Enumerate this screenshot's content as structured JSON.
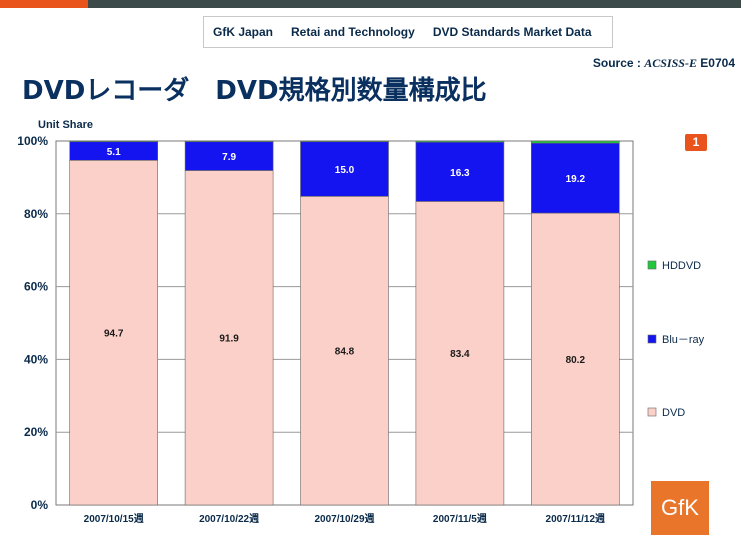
{
  "header": {
    "org": "GfK Japan",
    "division": "Retai and Technology",
    "report": "DVD Standards Market Data"
  },
  "source": {
    "label": "Source :",
    "code": "ACSISS-E",
    "id": "E0704"
  },
  "page_title": "DVDレコーダ　DVD規格別数量構成比",
  "page_number": "1",
  "logo_text": "GfK",
  "colors": {
    "accent": "#e8541c",
    "DVD": "#fbd0c8",
    "Blu-ray": "#1414f0",
    "HDDVD": "#22c83c",
    "title": "#0a3060"
  },
  "chart_data": {
    "type": "bar",
    "stacked": true,
    "title": "",
    "ylabel": "Unit Share",
    "xlabel": "",
    "ylim": [
      0,
      100
    ],
    "yticks": [
      "0%",
      "20%",
      "40%",
      "60%",
      "80%",
      "100%"
    ],
    "grid": true,
    "legend_position": "right",
    "categories": [
      "2007/10/15週",
      "2007/10/22週",
      "2007/10/29週",
      "2007/11/5週",
      "2007/11/12週"
    ],
    "series": [
      {
        "name": "DVD",
        "values": [
          94.7,
          91.9,
          84.8,
          83.4,
          80.2
        ],
        "labels": [
          "94.7",
          "91.9",
          "84.8",
          "83.4",
          "80.2"
        ]
      },
      {
        "name": "Blu－ray",
        "values": [
          5.1,
          7.9,
          15.0,
          16.3,
          19.2
        ],
        "labels": [
          "5.1",
          "7.9",
          "15.0",
          "16.3",
          "19.2"
        ]
      },
      {
        "name": "HDDVD",
        "values": [
          0.2,
          0.2,
          0.2,
          0.3,
          0.6
        ],
        "labels": [
          "",
          "",
          "",
          "",
          ""
        ]
      }
    ],
    "legend": [
      "HDDVD",
      "Blu－ray",
      "DVD"
    ]
  }
}
